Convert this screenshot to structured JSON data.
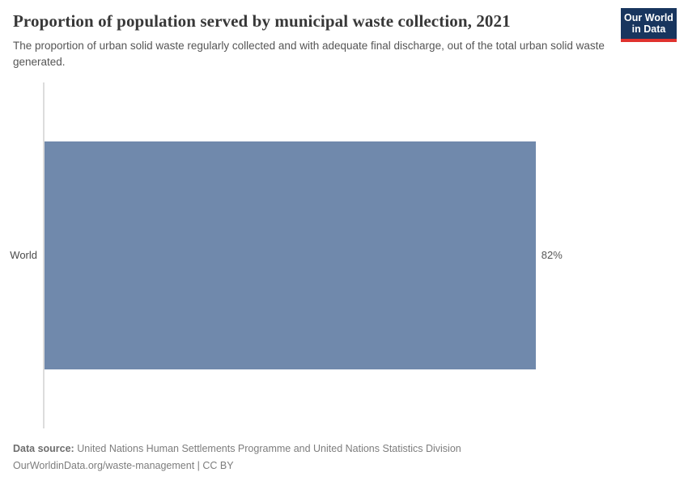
{
  "header": {
    "title": "Proportion of population served by municipal waste collection, 2021",
    "subtitle": "The proportion of urban solid waste regularly collected and with adequate final discharge, out of the total urban solid waste generated.",
    "logo": {
      "line1": "Our World",
      "line2": "in Data"
    }
  },
  "chart_data": {
    "type": "bar",
    "orientation": "horizontal",
    "title": "Proportion of population served by municipal waste collection, 2021",
    "categories": [
      "World"
    ],
    "values": [
      82
    ],
    "value_labels": [
      "82%"
    ],
    "xlabel": "",
    "ylabel": "",
    "xlim": [
      0,
      100
    ],
    "grid": false,
    "legend": "none",
    "bar_color": "#7089ac"
  },
  "colors": {
    "bar": "#7089ac",
    "logo_background": "#18355e",
    "logo_stripe": "#e0322e",
    "axis_line": "#dcdcdc",
    "title_text": "#383838",
    "subtitle_text": "#555555"
  },
  "footer": {
    "datasource_label": "Data source:",
    "datasource_text": "United Nations Human Settlements Programme and United Nations Statistics Division",
    "license_line": "OurWorldinData.org/waste-management | CC BY"
  }
}
